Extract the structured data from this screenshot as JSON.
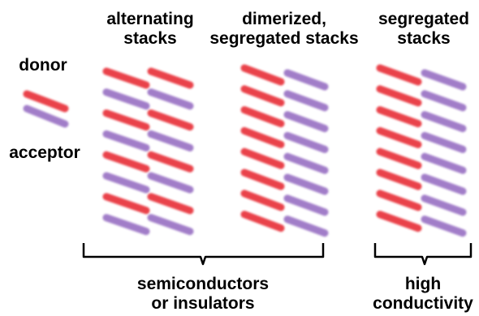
{
  "legend": {
    "donor_label": "donor",
    "acceptor_label": "acceptor",
    "donor_color": "#e8303a",
    "acceptor_color": "#9a72c4"
  },
  "columns": [
    {
      "title_line1": "alternating",
      "title_line2": "stacks",
      "left_stack": [
        "donor",
        "acceptor",
        "donor",
        "acceptor",
        "donor",
        "acceptor",
        "donor",
        "acceptor"
      ],
      "right_stack": [
        "donor",
        "acceptor",
        "donor",
        "acceptor",
        "donor",
        "acceptor",
        "donor",
        "acceptor"
      ]
    },
    {
      "title_line1": "dimerized,",
      "title_line2": "segregated stacks",
      "left_stack": [
        "donor",
        "donor",
        "donor",
        "donor",
        "donor",
        "donor",
        "donor",
        "donor"
      ],
      "right_stack": [
        "acceptor",
        "acceptor",
        "acceptor",
        "acceptor",
        "acceptor",
        "acceptor",
        "acceptor",
        "acceptor"
      ]
    },
    {
      "title_line1": "segregated",
      "title_line2": "stacks",
      "left_stack": [
        "donor",
        "donor",
        "donor",
        "donor",
        "donor",
        "donor",
        "donor",
        "donor"
      ],
      "right_stack": [
        "acceptor",
        "acceptor",
        "acceptor",
        "acceptor",
        "acceptor",
        "acceptor",
        "acceptor",
        "acceptor"
      ]
    }
  ],
  "groups": [
    {
      "line1": "semiconductors",
      "line2": "or insulators"
    },
    {
      "line1": "high",
      "line2": "conductivity"
    }
  ]
}
